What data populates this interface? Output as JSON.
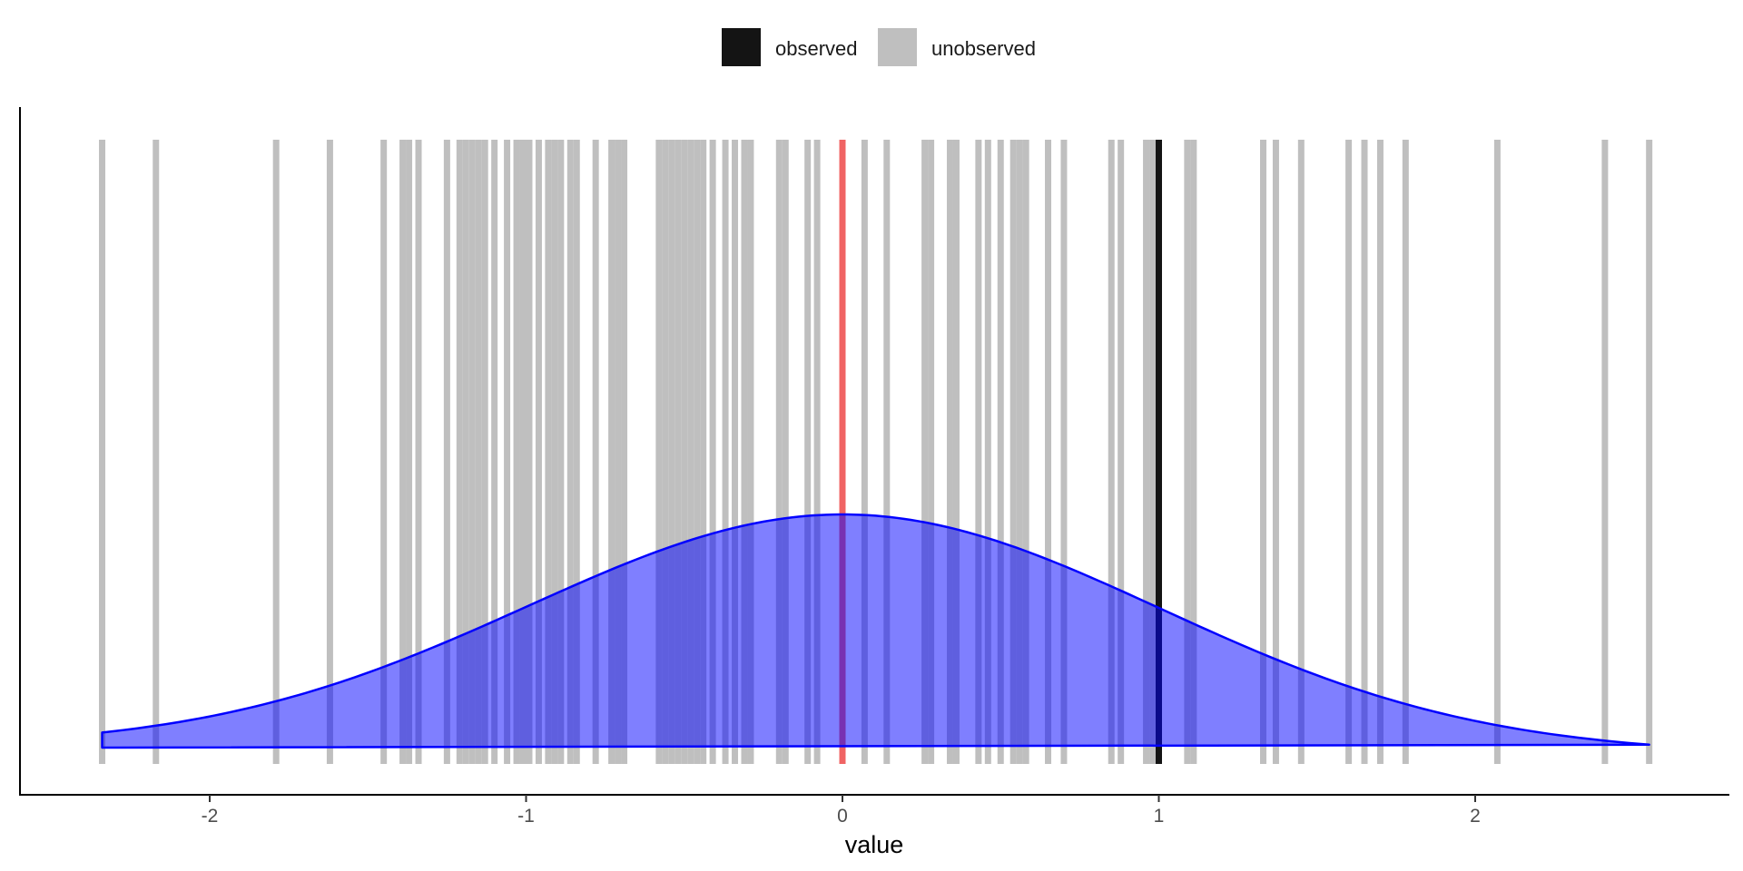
{
  "chart_data": {
    "type": "area",
    "xlabel": "value",
    "ylabel": "",
    "xlim": [
      -2.6,
      2.8
    ],
    "x_ticks": [
      -2,
      -1,
      0,
      1,
      2
    ],
    "x_tick_labels": [
      "-2",
      "-1",
      "0",
      "1",
      "2"
    ],
    "y_ticks_shown": false,
    "grid": false,
    "legend_position": "top",
    "legend": [
      {
        "name": "observed",
        "color": "#141414"
      },
      {
        "name": "unobserved",
        "color": "#bfbfbf"
      }
    ],
    "unobserved_values": [
      -2.34,
      -2.17,
      -1.79,
      -1.62,
      -1.45,
      -1.39,
      -1.37,
      -1.34,
      -1.25,
      -1.21,
      -1.19,
      -1.17,
      -1.15,
      -1.13,
      -1.1,
      -1.06,
      -1.03,
      -1.01,
      -0.99,
      -0.96,
      -0.93,
      -0.91,
      -0.89,
      -0.86,
      -0.84,
      -0.78,
      -0.73,
      -0.71,
      -0.69,
      -0.58,
      -0.56,
      -0.54,
      -0.52,
      -0.5,
      -0.48,
      -0.46,
      -0.44,
      -0.41,
      -0.37,
      -0.34,
      -0.31,
      -0.29,
      -0.2,
      -0.18,
      -0.11,
      -0.08,
      0.07,
      0.14,
      0.26,
      0.28,
      0.34,
      0.36,
      0.43,
      0.46,
      0.5,
      0.54,
      0.56,
      0.58,
      0.65,
      0.7,
      0.85,
      0.88,
      0.96,
      0.98,
      1.09,
      1.11,
      1.33,
      1.37,
      1.45,
      1.6,
      1.65,
      1.7,
      1.78,
      2.07,
      2.41,
      2.55
    ],
    "observed_value": 1.0,
    "observed_color": "#141414",
    "mean_value": 0.0,
    "mean_line_color": "#f06464",
    "density": {
      "distribution": "normal",
      "mean": 0.0,
      "sd": 1.0,
      "x_range": [
        -2.34,
        2.55
      ],
      "fill": "#0000ff",
      "fill_opacity": 0.5,
      "line_color": "#0000ff"
    }
  }
}
